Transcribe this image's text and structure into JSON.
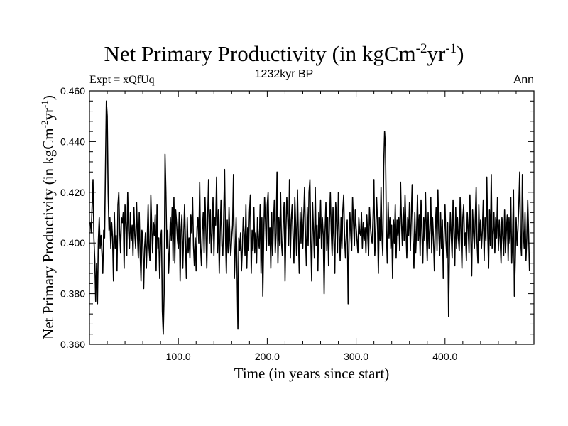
{
  "chart_data": {
    "type": "line",
    "title": "Net Primary Productivity (in kgCm",
    "title_sup1": "-2",
    "title_mid": "yr",
    "title_sup2": "-1",
    "title_end": ")",
    "expt_label": "Expt = xQfUq",
    "period_label": "1232kyr BP",
    "season_label": "Ann",
    "xlabel": "Time (in years since start)",
    "ylabel": "Net Primary Productivity (in kgCm",
    "ylabel_sup1": "-2",
    "ylabel_mid": "yr",
    "ylabel_sup2": "-1",
    "ylabel_end": ")",
    "xlim": [
      0,
      500
    ],
    "ylim": [
      0.36,
      0.46
    ],
    "x_ticks": [
      100,
      200,
      300,
      400
    ],
    "x_tick_labels": [
      "100.0",
      "200.0",
      "300.0",
      "400.0"
    ],
    "y_ticks": [
      0.36,
      0.38,
      0.4,
      0.42,
      0.44,
      0.46
    ],
    "y_tick_labels": [
      "0.360",
      "0.380",
      "0.400",
      "0.420",
      "0.440",
      "0.460"
    ],
    "series": [
      {
        "name": "Net Primary Productivity",
        "x_start": 1,
        "x_step": 1,
        "values": [
          0.408,
          0.404,
          0.415,
          0.425,
          0.402,
          0.393,
          0.377,
          0.392,
          0.376,
          0.401,
          0.41,
          0.398,
          0.403,
          0.396,
          0.388,
          0.405,
          0.402,
          0.43,
          0.456,
          0.45,
          0.42,
          0.405,
          0.41,
          0.398,
          0.408,
          0.402,
          0.385,
          0.412,
          0.398,
          0.403,
          0.389,
          0.415,
          0.42,
          0.405,
          0.396,
          0.41,
          0.408,
          0.412,
          0.39,
          0.415,
          0.408,
          0.395,
          0.42,
          0.405,
          0.398,
          0.412,
          0.401,
          0.407,
          0.395,
          0.414,
          0.403,
          0.398,
          0.416,
          0.403,
          0.394,
          0.412,
          0.396,
          0.385,
          0.405,
          0.402,
          0.382,
          0.398,
          0.404,
          0.39,
          0.402,
          0.415,
          0.398,
          0.393,
          0.419,
          0.407,
          0.396,
          0.408,
          0.403,
          0.411,
          0.389,
          0.415,
          0.398,
          0.402,
          0.386,
          0.402,
          0.405,
          0.373,
          0.364,
          0.38,
          0.435,
          0.42,
          0.398,
          0.405,
          0.388,
          0.397,
          0.41,
          0.401,
          0.414,
          0.393,
          0.418,
          0.392,
          0.413,
          0.408,
          0.401,
          0.398,
          0.412,
          0.385,
          0.405,
          0.411,
          0.39,
          0.403,
          0.415,
          0.4,
          0.386,
          0.41,
          0.396,
          0.402,
          0.394,
          0.411,
          0.404,
          0.418,
          0.399,
          0.391,
          0.402,
          0.389,
          0.406,
          0.41,
          0.4,
          0.424,
          0.398,
          0.391,
          0.405,
          0.412,
          0.396,
          0.418,
          0.404,
          0.39,
          0.41,
          0.425,
          0.4,
          0.413,
          0.396,
          0.404,
          0.418,
          0.395,
          0.41,
          0.407,
          0.426,
          0.396,
          0.413,
          0.388,
          0.404,
          0.417,
          0.399,
          0.395,
          0.41,
          0.429,
          0.403,
          0.388,
          0.409,
          0.396,
          0.414,
          0.401,
          0.395,
          0.402,
          0.407,
          0.427,
          0.386,
          0.397,
          0.41,
          0.39,
          0.366,
          0.402,
          0.397,
          0.404,
          0.389,
          0.398,
          0.41,
          0.404,
          0.395,
          0.415,
          0.39,
          0.406,
          0.397,
          0.412,
          0.419,
          0.388,
          0.405,
          0.397,
          0.414,
          0.396,
          0.404,
          0.392,
          0.41,
          0.401,
          0.398,
          0.415,
          0.388,
          0.41,
          0.379,
          0.402,
          0.418,
          0.409,
          0.397,
          0.415,
          0.42,
          0.399,
          0.406,
          0.39,
          0.412,
          0.395,
          0.408,
          0.417,
          0.396,
          0.404,
          0.428,
          0.392,
          0.41,
          0.399,
          0.42,
          0.4,
          0.395,
          0.409,
          0.416,
          0.385,
          0.405,
          0.418,
          0.41,
          0.399,
          0.425,
          0.394,
          0.409,
          0.415,
          0.402,
          0.392,
          0.418,
          0.407,
          0.395,
          0.421,
          0.403,
          0.388,
          0.412,
          0.4,
          0.414,
          0.398,
          0.41,
          0.422,
          0.403,
          0.391,
          0.414,
          0.399,
          0.42,
          0.425,
          0.401,
          0.385,
          0.416,
          0.405,
          0.394,
          0.422,
          0.399,
          0.407,
          0.389,
          0.412,
          0.402,
          0.417,
          0.398,
          0.41,
          0.403,
          0.38,
          0.404,
          0.416,
          0.397,
          0.41,
          0.391,
          0.408,
          0.42,
          0.405,
          0.395,
          0.414,
          0.401,
          0.388,
          0.416,
          0.409,
          0.396,
          0.42,
          0.404,
          0.393,
          0.41,
          0.398,
          0.413,
          0.419,
          0.402,
          0.394,
          0.404,
          0.409,
          0.376,
          0.4,
          0.412,
          0.403,
          0.397,
          0.418,
          0.408,
          0.399,
          0.413,
          0.406,
          0.401,
          0.396,
          0.41,
          0.404,
          0.403,
          0.412,
          0.398,
          0.408,
          0.401,
          0.406,
          0.396,
          0.411,
          0.403,
          0.395,
          0.414,
          0.407,
          0.402,
          0.4,
          0.41,
          0.425,
          0.395,
          0.404,
          0.418,
          0.409,
          0.388,
          0.41,
          0.401,
          0.422,
          0.403,
          0.395,
          0.43,
          0.444,
          0.438,
          0.405,
          0.392,
          0.416,
          0.402,
          0.41,
          0.398,
          0.407,
          0.386,
          0.409,
          0.4,
          0.415,
          0.394,
          0.409,
          0.403,
          0.41,
          0.397,
          0.424,
          0.408,
          0.399,
          0.414,
          0.401,
          0.419,
          0.406,
          0.394,
          0.41,
          0.403,
          0.416,
          0.397,
          0.41,
          0.423,
          0.401,
          0.39,
          0.412,
          0.396,
          0.405,
          0.419,
          0.401,
          0.411,
          0.395,
          0.417,
          0.404,
          0.392,
          0.41,
          0.401,
          0.42,
          0.404,
          0.393,
          0.412,
          0.398,
          0.405,
          0.418,
          0.396,
          0.41,
          0.402,
          0.389,
          0.405,
          0.414,
          0.397,
          0.421,
          0.404,
          0.395,
          0.412,
          0.398,
          0.409,
          0.386,
          0.403,
          0.415,
          0.401,
          0.394,
          0.408,
          0.371,
          0.398,
          0.412,
          0.403,
          0.394,
          0.417,
          0.405,
          0.391,
          0.414,
          0.398,
          0.41,
          0.402,
          0.397,
          0.418,
          0.403,
          0.39,
          0.41,
          0.415,
          0.399,
          0.404,
          0.393,
          0.412,
          0.406,
          0.396,
          0.419,
          0.402,
          0.387,
          0.413,
          0.404,
          0.398,
          0.41,
          0.422,
          0.4,
          0.392,
          0.415,
          0.401,
          0.409,
          0.398,
          0.405,
          0.417,
          0.393,
          0.41,
          0.401,
          0.426,
          0.404,
          0.39,
          0.413,
          0.399,
          0.427,
          0.398,
          0.404,
          0.412,
          0.396,
          0.41,
          0.402,
          0.418,
          0.397,
          0.409,
          0.401,
          0.392,
          0.41,
          0.403,
          0.395,
          0.413,
          0.396,
          0.405,
          0.411,
          0.393,
          0.41,
          0.4,
          0.418,
          0.392,
          0.403,
          0.421,
          0.379,
          0.393,
          0.41,
          0.399,
          0.405,
          0.415,
          0.428,
          0.401,
          0.395,
          0.427,
          0.405,
          0.398,
          0.412,
          0.393,
          0.402,
          0.417,
          0.404,
          0.389
        ]
      }
    ]
  }
}
